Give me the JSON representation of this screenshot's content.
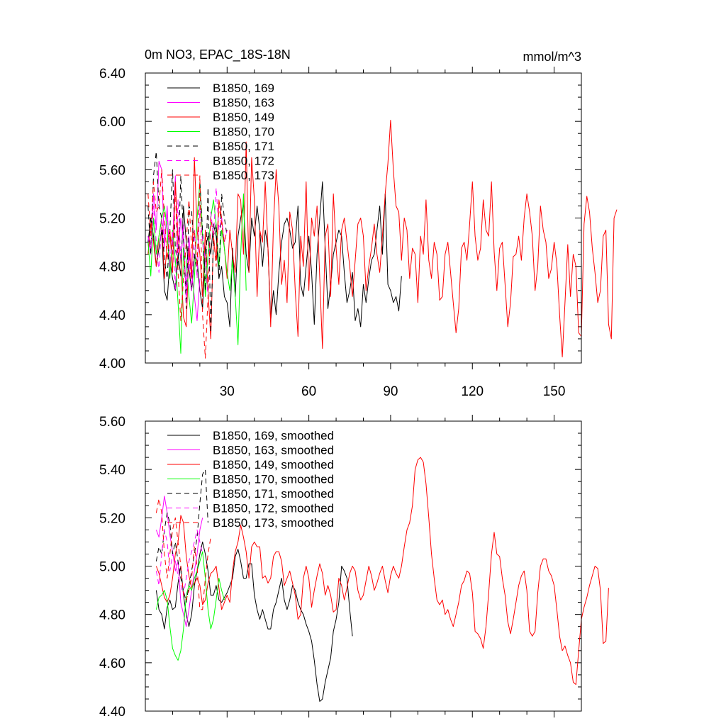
{
  "chart_data": [
    {
      "type": "line",
      "title": "0m NO3, EPAC_18S-18N",
      "units": "mmol/m^3",
      "xlabel": "",
      "ylabel": "",
      "xlim": [
        0,
        160
      ],
      "ylim": [
        4.0,
        6.4
      ],
      "xticks": [
        30,
        60,
        90,
        120,
        150
      ],
      "xtick_labels": [
        "30",
        "60",
        "90",
        "120",
        "150"
      ],
      "yticks": [
        4.0,
        4.4,
        4.8,
        5.2,
        5.6,
        6.0,
        6.4
      ],
      "ytick_labels": [
        "4.00",
        "4.40",
        "4.80",
        "5.20",
        "5.60",
        "6.00",
        "6.40"
      ],
      "legend_position": "top-left",
      "series": [
        {
          "name": "B1850, 169",
          "color": "#000000",
          "dash": "solid",
          "x_start": 1,
          "values": [
            5.0,
            5.2,
            5.05,
            4.8,
            4.95,
            5.1,
            4.6,
            4.52,
            4.85,
            4.7,
            4.6,
            4.9,
            4.72,
            5.3,
            5.0,
            4.78,
            4.6,
            4.88,
            4.85,
            4.6,
            4.45,
            4.95,
            5.05,
            4.9,
            5.15,
            5.05,
            4.7,
            4.8,
            4.55,
            4.5,
            4.3,
            4.95,
            4.55,
            5.05,
            5.2,
            5.32,
            4.9,
            4.75,
            5.2,
            5.05,
            5.3,
            5.1,
            4.8,
            5.1,
            4.95,
            4.35,
            4.6,
            4.4,
            4.75,
            5.0,
            5.15,
            5.2,
            5.1,
            4.95,
            5.0,
            5.3,
            4.65,
            4.55,
            4.8,
            5.05,
            4.75,
            4.32,
            4.9,
            5.2,
            5.5,
            4.95,
            4.45,
            4.65,
            4.9,
            5.0,
            5.1,
            5.05,
            4.75,
            4.5,
            4.6,
            4.75,
            4.35,
            4.45,
            4.3,
            4.65,
            4.5,
            4.7,
            4.85,
            4.9,
            5.1,
            5.3,
            4.9,
            5.4,
            4.65,
            4.6,
            4.5,
            4.55,
            4.43,
            4.72
          ]
        },
        {
          "name": "B1850, 163",
          "color": "#ff00ff",
          "dash": "solid",
          "x_start": 1,
          "values": [
            5.05,
            4.9,
            5.4,
            5.1,
            5.67,
            5.6,
            4.95,
            5.3,
            4.8,
            5.0,
            5.55,
            4.9,
            5.2,
            5.0,
            4.6,
            5.05,
            4.75,
            4.55,
            4.35,
            4.7
          ]
        },
        {
          "name": "B1850, 149",
          "color": "#ff0000",
          "dash": "solid",
          "x_start": 1,
          "values": [
            4.9,
            5.15,
            5.0,
            4.8,
            5.05,
            5.2,
            4.7,
            5.0,
            5.1,
            4.75,
            5.5,
            5.05,
            4.85,
            4.38,
            4.3,
            4.95,
            4.7,
            5.7,
            5.1,
            4.9,
            4.55,
            5.1,
            4.6,
            4.2,
            5.05,
            4.85,
            5.35,
            5.2,
            4.95,
            4.7,
            5.1,
            4.9,
            4.75,
            5.4,
            5.35,
            4.9,
            5.83,
            4.75,
            5.7,
            5.35,
            4.55,
            5.1,
            5.0,
            5.5,
            4.95,
            4.3,
            5.15,
            5.6,
            5.3,
            4.65,
            4.85,
            4.5,
            5.25,
            5.1,
            4.6,
            4.22,
            5.05,
            4.8,
            5.5,
            4.6,
            5.2,
            5.05,
            5.3,
            4.7,
            4.12,
            5.05,
            5.15,
            4.55,
            5.4,
            4.95,
            4.65,
            5.1,
            5.2,
            5.0,
            4.8,
            4.55,
            4.85,
            5.15,
            5.2,
            5.05,
            4.6,
            4.8,
            4.95,
            5.15,
            4.9,
            4.75,
            5.05,
            5.4,
            5.65,
            6.01,
            5.6,
            5.3,
            5.25,
            4.85,
            5.2,
            5.1,
            4.7,
            4.95,
            4.9,
            4.5,
            5.05,
            4.9,
            5.35,
            4.85,
            4.7,
            5.0,
            4.9,
            4.52,
            4.55,
            4.9,
            5.0,
            4.75,
            4.5,
            4.25,
            4.45,
            4.95,
            5.0,
            4.85,
            5.15,
            5.5,
            5.05,
            4.85,
            4.95,
            5.35,
            5.1,
            5.05,
            5.5,
            4.92,
            4.6,
            4.95,
            5.0,
            4.65,
            4.3,
            4.5,
            4.88,
            4.9,
            5.05,
            4.85,
            5.2,
            5.4,
            5.25,
            5.05,
            4.6,
            4.8,
            5.3,
            5.1,
            5.0,
            4.7,
            4.78,
            5.0,
            4.82,
            4.4,
            4.05,
            4.5,
            4.98,
            4.55,
            4.9,
            4.8,
            4.25,
            4.22,
            5.15,
            5.38,
            5.25,
            4.95,
            4.75,
            4.5,
            4.6,
            5.05,
            5.1,
            4.32,
            4.2,
            5.2,
            5.27
          ]
        },
        {
          "name": "B1850, 170",
          "color": "#00ff00",
          "dash": "solid",
          "x_start": 1,
          "values": [
            5.0,
            4.72,
            5.2,
            4.9,
            5.05,
            5.2,
            5.3,
            5.1,
            4.7,
            5.1,
            4.85,
            4.5,
            4.08,
            4.95,
            4.85,
            4.55,
            4.33,
            4.7,
            5.2,
            5.5,
            5.05,
            4.55,
            4.9,
            5.2,
            5.35,
            5.15,
            4.8,
            5.1,
            4.95,
            4.75,
            4.6,
            4.85,
            4.55,
            4.15,
            4.9,
            5.4,
            4.6
          ]
        },
        {
          "name": "B1850, 171",
          "color": "#000000",
          "dash": "dashed",
          "x_start": 1,
          "values": [
            5.3,
            4.9,
            5.55,
            5.75,
            5.3,
            5.2,
            4.85,
            4.7,
            5.1,
            5.6,
            4.95,
            4.8,
            5.55,
            5.05,
            4.45,
            5.3,
            5.25,
            4.9,
            4.75,
            5.5,
            5.1,
            4.6,
            5.45,
            4.25,
            5.05,
            5.15,
            4.7,
            5.4,
            5.2,
            5.05
          ]
        },
        {
          "name": "B1850, 172",
          "color": "#ff00ff",
          "dash": "dashed",
          "x_start": 1,
          "values": [
            5.05,
            4.95,
            5.3,
            5.0,
            4.75,
            5.2,
            5.0,
            5.25,
            4.8,
            5.1,
            4.6,
            5.35,
            4.85,
            5.15,
            4.5,
            4.9,
            4.6,
            5.1,
            4.7,
            5.3,
            5.0,
            4.85,
            4.55,
            5.25,
            5.05,
            5.45,
            5.1,
            5.2,
            5.0,
            5.1
          ]
        },
        {
          "name": "B1850, 173",
          "color": "#ff0000",
          "dash": "dashed",
          "x_start": 1,
          "values": [
            5.4,
            5.05,
            5.5,
            5.25,
            5.3,
            5.6,
            5.2,
            4.85,
            5.1,
            4.9,
            5.45,
            4.75,
            4.35,
            4.7,
            5.0,
            5.35,
            4.95,
            5.1,
            4.8,
            5.55,
            4.4,
            4.04,
            4.55,
            5.2,
            5.05,
            4.8,
            5.3,
            5.15,
            5.0,
            5.1
          ]
        }
      ]
    },
    {
      "type": "line",
      "title": "",
      "xlabel": "",
      "ylabel": "",
      "xlim": [
        0,
        160
      ],
      "ylim": [
        4.4,
        5.6
      ],
      "xticks": [
        30,
        60,
        90,
        120,
        150
      ],
      "xtick_labels": [],
      "yticks": [
        4.4,
        4.6,
        4.8,
        5.0,
        5.2,
        5.4,
        5.6
      ],
      "ytick_labels": [
        "4.40",
        "4.60",
        "4.80",
        "5.00",
        "5.20",
        "5.40",
        "5.60"
      ],
      "legend_position": "top-left",
      "series": [
        {
          "name": "B1850, 169, smoothed",
          "color": "#000000",
          "dash": "solid",
          "x_start": 4,
          "values": [
            4.9,
            4.82,
            4.8,
            4.74,
            4.83,
            4.86,
            4.82,
            4.83,
            4.93,
            5.0,
            4.88,
            4.8,
            4.75,
            4.8,
            4.92,
            4.98,
            5.05,
            5.1,
            5.05,
            4.98,
            4.88,
            4.88,
            4.92,
            4.86,
            4.85,
            4.87,
            4.89,
            4.92,
            4.95,
            5.04,
            5.07,
            5.02,
            4.95,
            4.95,
            5.01,
            5.01,
            4.88,
            4.82,
            4.78,
            4.82,
            4.78,
            4.74,
            4.74,
            4.82,
            4.85,
            4.9,
            4.95,
            4.86,
            4.82,
            4.86,
            4.92,
            4.9,
            4.85,
            4.82,
            4.8,
            4.76,
            4.73,
            4.69,
            4.61,
            4.51,
            4.44,
            4.45,
            4.52,
            4.57,
            4.62,
            4.73,
            4.78,
            4.85,
            5.0,
            4.98,
            4.95,
            4.82,
            4.71
          ]
        },
        {
          "name": "B1850, 163, smoothed",
          "color": "#ff00ff",
          "dash": "solid",
          "x_start": 4,
          "values": [
            5.15,
            5.12,
            5.2,
            5.29,
            5.22,
            5.13,
            5.06,
            4.98,
            5.02,
            4.85,
            4.8,
            4.75,
            4.82,
            4.9,
            4.98,
            5.05,
            5.15,
            5.2
          ]
        },
        {
          "name": "B1850, 149, smoothed",
          "color": "#ff0000",
          "dash": "solid",
          "x_start": 4,
          "values": [
            5.0,
            4.97,
            4.92,
            4.87,
            4.85,
            4.88,
            4.95,
            5.05,
            5.1,
            5.21,
            5.18,
            5.04,
            4.96,
            4.91,
            4.93,
            4.95,
            4.92,
            4.84,
            4.86,
            4.93,
            4.97,
            4.98,
            5.0,
            4.91,
            4.82,
            4.85,
            4.88,
            4.85,
            4.98,
            5.06,
            5.1,
            5.17,
            5.12,
            5.06,
            4.95,
            5.08,
            5.1,
            5.08,
            5.08,
            4.95,
            4.96,
            4.93,
            4.95,
            5.04,
            5.06,
            5.06,
            5.02,
            4.92,
            4.95,
            4.98,
            4.93,
            4.88,
            4.78,
            4.8,
            4.95,
            5.0,
            4.95,
            4.83,
            4.9,
            4.96,
            5.01,
            4.97,
            4.88,
            4.92,
            4.88,
            4.81,
            4.82,
            4.95,
            4.92,
            4.86,
            4.91,
            4.97,
            5.0,
            4.98,
            4.9,
            4.86,
            4.88,
            4.94,
            5.0,
            4.96,
            4.9,
            4.93,
            4.97,
            5.0,
            4.94,
            4.89,
            4.96,
            5.0,
            4.97,
            4.95,
            5.0,
            5.08,
            5.15,
            5.18,
            5.25,
            5.4,
            5.44,
            5.45,
            5.43,
            5.34,
            5.2,
            5.05,
            4.95,
            4.86,
            4.84,
            4.86,
            4.8,
            4.82,
            4.78,
            4.75,
            4.8,
            4.85,
            4.92,
            4.94,
            4.98,
            4.97,
            4.89,
            4.73,
            4.72,
            4.7,
            4.66,
            4.75,
            4.89,
            5.05,
            5.14,
            5.05,
            5.04,
            4.95,
            4.88,
            4.77,
            4.72,
            4.78,
            4.85,
            4.92,
            4.96,
            4.98,
            4.9,
            4.73,
            4.71,
            4.73,
            4.89,
            5.0,
            5.03,
            5.03,
            4.98,
            4.96,
            4.92,
            4.82,
            4.71,
            4.65,
            4.67,
            4.63,
            4.6,
            4.52,
            4.51,
            4.65,
            4.78,
            4.83,
            4.87,
            4.92,
            4.96,
            5.0,
            4.99,
            4.9,
            4.68,
            4.69,
            4.91
          ]
        },
        {
          "name": "B1850, 170, smoothed",
          "color": "#00ff00",
          "dash": "solid",
          "x_start": 4,
          "values": [
            4.82,
            4.87,
            4.88,
            4.9,
            4.86,
            4.75,
            4.66,
            4.63,
            4.61,
            4.65,
            4.74,
            4.88,
            4.92,
            4.9,
            4.95,
            4.98,
            5.02,
            5.06,
            4.95,
            4.82,
            4.74,
            4.78,
            4.86,
            4.95,
            4.9,
            4.86
          ]
        },
        {
          "name": "B1850, 171, smoothed",
          "color": "#000000",
          "dash": "dashed",
          "x_start": 4,
          "values": [
            5.02,
            5.08,
            5.05,
            5.15,
            5.22,
            5.18,
            5.05,
            5.1,
            5.02,
            4.95,
            4.9,
            4.85,
            4.92,
            4.98,
            5.05,
            5.12,
            5.26,
            5.38,
            5.4,
            5.18
          ]
        },
        {
          "name": "B1850, 172, smoothed",
          "color": "#ff00ff",
          "dash": "dashed",
          "x_start": 4,
          "values": [
            4.98,
            4.92,
            5.05,
            5.15,
            5.1,
            4.98,
            5.05,
            5.02,
            4.96,
            4.92,
            4.88,
            4.95,
            5.02,
            5.06,
            5.1,
            5.15,
            5.1,
            5.05
          ]
        },
        {
          "name": "B1850, 173, smoothed",
          "color": "#ff0000",
          "dash": "dashed",
          "x_start": 4,
          "values": [
            5.22,
            5.28,
            5.22,
            5.05,
            4.95,
            5.05,
            5.15,
            5.2,
            5.1,
            5.0,
            4.88,
            4.86,
            4.9,
            4.95,
            5.08,
            5.0,
            4.82,
            4.82,
            4.95,
            5.05,
            5.12
          ]
        }
      ]
    }
  ]
}
